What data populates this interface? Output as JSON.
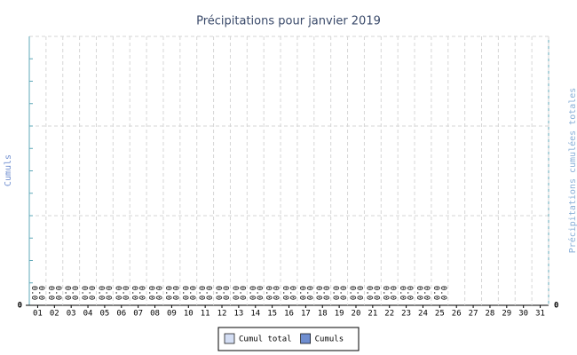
{
  "chart_data": {
    "type": "bar",
    "title": "Précipitations pour janvier 2019",
    "y_label": "Cumuls",
    "y2_label": "Précipitations cumulées totales",
    "categories": [
      "01",
      "02",
      "03",
      "04",
      "05",
      "06",
      "07",
      "08",
      "09",
      "10",
      "11",
      "12",
      "13",
      "14",
      "15",
      "16",
      "17",
      "18",
      "19",
      "20",
      "21",
      "22",
      "23",
      "24",
      "25",
      "26",
      "27",
      "28",
      "29",
      "30",
      "31"
    ],
    "series": [
      {
        "name": "Cumul total",
        "color": "#d4def4",
        "values": [
          0,
          0,
          0,
          0,
          0,
          0,
          0,
          0,
          0,
          0,
          0,
          0,
          0,
          0,
          0,
          0,
          0,
          0,
          0,
          0,
          0,
          0,
          0,
          0,
          0,
          null,
          null,
          null,
          null,
          null,
          null
        ],
        "value_labels": [
          "0.0",
          "0.0",
          "0.0",
          "0.0",
          "0.0",
          "0.0",
          "0.0",
          "0.0",
          "0.0",
          "0.0",
          "0.0",
          "0.0",
          "0.0",
          "0.0",
          "0.0",
          "0.0",
          "0.0",
          "0.0",
          "0.0",
          "0.0",
          "0.0",
          "0.0",
          "0.0",
          "0.0",
          "0.0",
          null,
          null,
          null,
          null,
          null,
          null
        ]
      },
      {
        "name": "Cumuls",
        "color": "#6f8ed0",
        "values": [
          0,
          0,
          0,
          0,
          0,
          0,
          0,
          0,
          0,
          0,
          0,
          0,
          0,
          0,
          0,
          0,
          0,
          0,
          0,
          0,
          0,
          0,
          0,
          0,
          0,
          null,
          null,
          null,
          null,
          null,
          null
        ],
        "value_labels": [
          "0.0",
          "0.0",
          "0.0",
          "0.0",
          "0.0",
          "0.0",
          "0.0",
          "0.0",
          "0.0",
          "0.0",
          "0.0",
          "0.0",
          "0.0",
          "0.0",
          "0.0",
          "0.0",
          "0.0",
          "0.0",
          "0.0",
          "0.0",
          "0.0",
          "0.0",
          "0.0",
          "0.0",
          "0.0",
          null,
          null,
          null,
          null,
          null,
          null
        ]
      }
    ],
    "ylim": [
      0,
      1
    ],
    "yticks": [
      0
    ],
    "y2lim": [
      0,
      1
    ],
    "y2ticks": [
      0
    ],
    "grid": true
  }
}
